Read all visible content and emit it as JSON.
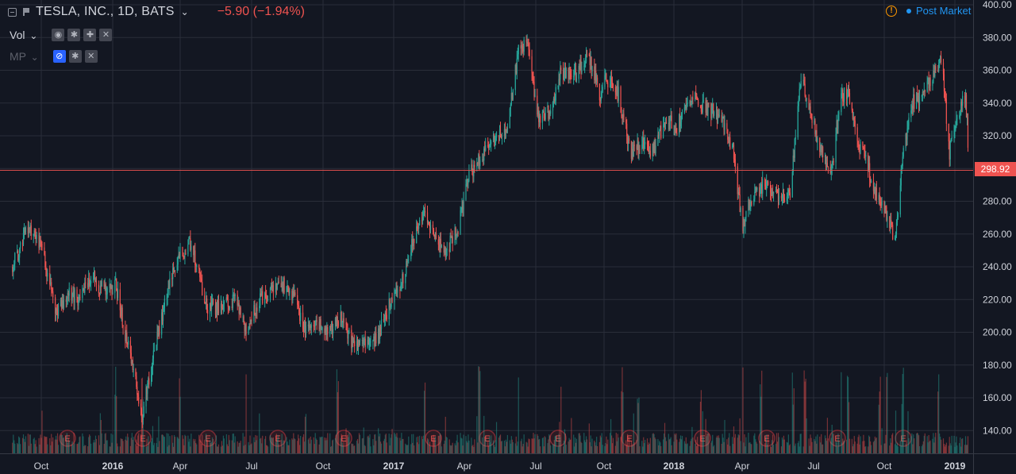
{
  "header": {
    "symbol_title": "TESLA, INC., 1D, BATS",
    "change": "−5.90 (−1.94%)",
    "post_market": "Post Market",
    "warning_glyph": "!"
  },
  "indicators": [
    {
      "label": "Vol",
      "buttons": [
        "eye-icon",
        "gear-icon",
        "plus-icon",
        "close-icon"
      ]
    },
    {
      "label": "MP",
      "buttons": [
        "hidden-icon",
        "gear-icon",
        "close-icon"
      ]
    }
  ],
  "last_price_label": "298.92",
  "colors": {
    "background": "#131722",
    "up": "#26a69a",
    "down": "#ef5350",
    "grid": "#2a2e39",
    "accent": "#2196f3"
  },
  "chart_data": {
    "type": "candlestick",
    "title": "TESLA, INC., 1D, BATS",
    "y_ticks": [
      140,
      160,
      180,
      200,
      220,
      240,
      260,
      280,
      300,
      320,
      340,
      360,
      380,
      400
    ],
    "ylim": [
      130,
      400
    ],
    "x_ticks": [
      "Oct",
      "2016",
      "Apr",
      "Jul",
      "Oct",
      "2017",
      "Apr",
      "Jul",
      "Oct",
      "2018",
      "Apr",
      "Jul",
      "Oct",
      "2019"
    ],
    "last_price": 298.92,
    "earnings_marker": "E",
    "earnings_count": 13,
    "price_path": [
      [
        "2015-08-25",
        240
      ],
      [
        "2015-09-15",
        265
      ],
      [
        "2015-09-25",
        260
      ],
      [
        "2015-10-05",
        245
      ],
      [
        "2015-10-20",
        213
      ],
      [
        "2015-11-05",
        225
      ],
      [
        "2015-11-20",
        220
      ],
      [
        "2015-12-05",
        235
      ],
      [
        "2015-12-20",
        225
      ],
      [
        "2016-01-05",
        230
      ],
      [
        "2016-01-20",
        195
      ],
      [
        "2016-02-10",
        150
      ],
      [
        "2016-02-25",
        185
      ],
      [
        "2016-03-15",
        225
      ],
      [
        "2016-04-01",
        248
      ],
      [
        "2016-04-15",
        255
      ],
      [
        "2016-05-05",
        215
      ],
      [
        "2016-05-20",
        215
      ],
      [
        "2016-06-10",
        220
      ],
      [
        "2016-06-25",
        200
      ],
      [
        "2016-07-10",
        220
      ],
      [
        "2016-07-25",
        225
      ],
      [
        "2016-08-10",
        230
      ],
      [
        "2016-08-25",
        220
      ],
      [
        "2016-09-10",
        200
      ],
      [
        "2016-09-25",
        205
      ],
      [
        "2016-10-10",
        200
      ],
      [
        "2016-10-25",
        210
      ],
      [
        "2016-11-10",
        190
      ],
      [
        "2016-11-25",
        192
      ],
      [
        "2016-12-10",
        195
      ],
      [
        "2016-12-25",
        215
      ],
      [
        "2017-01-10",
        230
      ],
      [
        "2017-01-25",
        255
      ],
      [
        "2017-02-10",
        275
      ],
      [
        "2017-02-25",
        255
      ],
      [
        "2017-03-10",
        250
      ],
      [
        "2017-03-25",
        265
      ],
      [
        "2017-04-05",
        295
      ],
      [
        "2017-04-20",
        305
      ],
      [
        "2017-05-10",
        320
      ],
      [
        "2017-05-25",
        325
      ],
      [
        "2017-06-10",
        375
      ],
      [
        "2017-06-20",
        375
      ],
      [
        "2017-07-05",
        330
      ],
      [
        "2017-07-20",
        335
      ],
      [
        "2017-08-05",
        360
      ],
      [
        "2017-08-20",
        355
      ],
      [
        "2017-09-10",
        370
      ],
      [
        "2017-09-25",
        345
      ],
      [
        "2017-10-05",
        355
      ],
      [
        "2017-10-20",
        345
      ],
      [
        "2017-11-05",
        310
      ],
      [
        "2017-11-20",
        315
      ],
      [
        "2017-12-05",
        310
      ],
      [
        "2017-12-20",
        330
      ],
      [
        "2018-01-05",
        325
      ],
      [
        "2018-01-20",
        345
      ],
      [
        "2018-02-05",
        340
      ],
      [
        "2018-02-20",
        335
      ],
      [
        "2018-03-05",
        330
      ],
      [
        "2018-03-20",
        310
      ],
      [
        "2018-04-01",
        265
      ],
      [
        "2018-04-15",
        285
      ],
      [
        "2018-05-01",
        290
      ],
      [
        "2018-05-15",
        285
      ],
      [
        "2018-06-01",
        285
      ],
      [
        "2018-06-15",
        355
      ],
      [
        "2018-06-25",
        340
      ],
      [
        "2018-07-10",
        310
      ],
      [
        "2018-07-25",
        300
      ],
      [
        "2018-08-05",
        345
      ],
      [
        "2018-08-15",
        345
      ],
      [
        "2018-08-25",
        320
      ],
      [
        "2018-09-10",
        300
      ],
      [
        "2018-09-25",
        280
      ],
      [
        "2018-10-05",
        270
      ],
      [
        "2018-10-15",
        255
      ],
      [
        "2018-10-25",
        305
      ],
      [
        "2018-11-05",
        340
      ],
      [
        "2018-11-20",
        345
      ],
      [
        "2018-12-05",
        360
      ],
      [
        "2018-12-15",
        365
      ],
      [
        "2018-12-25",
        310
      ],
      [
        "2019-01-05",
        335
      ],
      [
        "2019-01-15",
        345
      ],
      [
        "2019-01-20",
        298.92
      ]
    ],
    "volume_spike_dates": [
      "2015-08-10",
      "2016-01-05",
      "2016-02-10",
      "2016-04-01",
      "2016-06-25",
      "2016-10-20",
      "2017-02-10",
      "2017-04-20",
      "2017-06-10",
      "2017-08-05",
      "2017-10-25",
      "2017-11-15",
      "2018-02-05",
      "2018-04-01",
      "2018-04-25",
      "2018-06-05",
      "2018-06-20",
      "2018-08-05",
      "2018-08-15",
      "2018-09-25",
      "2018-10-05",
      "2018-10-25",
      "2018-12-10",
      "2019-01-20"
    ]
  }
}
